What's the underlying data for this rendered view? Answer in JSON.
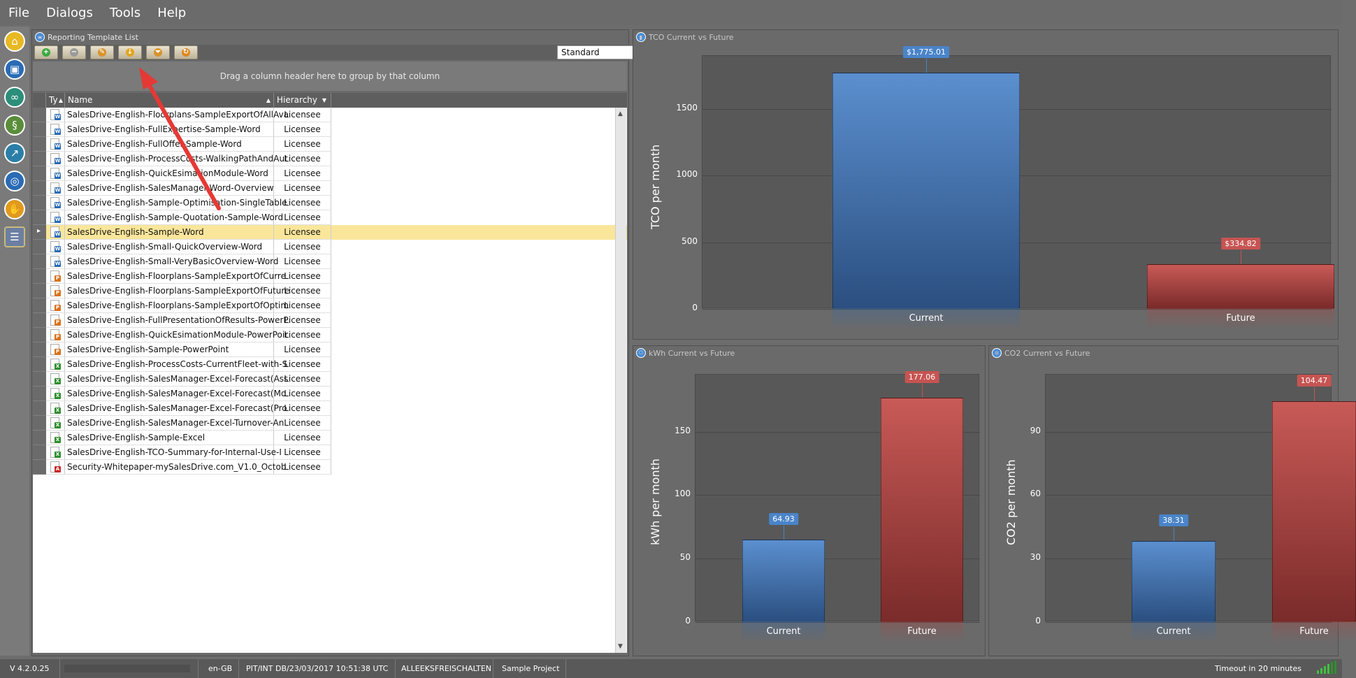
{
  "menu": [
    "File",
    "Dialogs",
    "Tools",
    "Help"
  ],
  "leftnav": [
    {
      "name": "home-icon",
      "color": "#e8b923"
    },
    {
      "name": "folder-icon",
      "color": "#2a6bb5"
    },
    {
      "name": "binoculars-icon",
      "color": "#2b8f7a"
    },
    {
      "name": "scroll-icon",
      "color": "#5a8d3a"
    },
    {
      "name": "chart-line-icon",
      "color": "#2a7fa8"
    },
    {
      "name": "target-icon",
      "color": "#2a6bb5"
    },
    {
      "name": "handshake-icon",
      "color": "#e09a1e"
    },
    {
      "name": "report-list-icon",
      "color": "#6d7fa1"
    }
  ],
  "list_panel": {
    "title": "Reporting Template List",
    "group_hint": "Drag a column header here to group by that column",
    "view_combo": "Standard",
    "toolbar": [
      {
        "name": "add-button",
        "icon": "plus",
        "color": "#3ca83c"
      },
      {
        "name": "remove-button",
        "icon": "minus",
        "color": "#9a9a9a"
      },
      {
        "name": "edit-button",
        "icon": "pencil",
        "color": "#d9932a"
      },
      {
        "name": "download-button",
        "icon": "download",
        "color": "#e3a51e"
      },
      {
        "name": "filter-button",
        "icon": "filter",
        "color": "#d9932a"
      },
      {
        "name": "refresh-button",
        "icon": "refresh",
        "color": "#e0861e"
      }
    ],
    "columns": {
      "type": "Ty",
      "name": "Name",
      "hierarchy": "Hierarchy"
    },
    "rows": [
      {
        "name": "SalesDrive-English-Floorplans-SampleExportOfAllAva",
        "hierarchy": "Licensee",
        "type": "word"
      },
      {
        "name": "SalesDrive-English-FullExpertise-Sample-Word",
        "hierarchy": "Licensee",
        "type": "word"
      },
      {
        "name": "SalesDrive-English-FullOffer-Sample-Word",
        "hierarchy": "Licensee",
        "type": "word"
      },
      {
        "name": "SalesDrive-English-ProcessCosts-WalkingPathAndAut",
        "hierarchy": "Licensee",
        "type": "word"
      },
      {
        "name": "SalesDrive-English-QuickEsimationModule-Word",
        "hierarchy": "Licensee",
        "type": "word"
      },
      {
        "name": "SalesDrive-English-SalesManager-Word-Overview",
        "hierarchy": "Licensee",
        "type": "word"
      },
      {
        "name": "SalesDrive-English-Sample-Optimisation-SingleTable",
        "hierarchy": "Licensee",
        "type": "word"
      },
      {
        "name": "SalesDrive-English-Sample-Quotation-Sample-Word",
        "hierarchy": "Licensee",
        "type": "word"
      },
      {
        "name": "SalesDrive-English-Sample-Word",
        "hierarchy": "Licensee",
        "type": "word",
        "selected": true
      },
      {
        "name": "SalesDrive-English-Small-QuickOverview-Word",
        "hierarchy": "Licensee",
        "type": "word"
      },
      {
        "name": "SalesDrive-English-Small-VeryBasicOverview-Word",
        "hierarchy": "Licensee",
        "type": "word"
      },
      {
        "name": "SalesDrive-English-Floorplans-SampleExportOfCurre",
        "hierarchy": "Licensee",
        "type": "ppt"
      },
      {
        "name": "SalesDrive-English-Floorplans-SampleExportOfFuture",
        "hierarchy": "Licensee",
        "type": "ppt"
      },
      {
        "name": "SalesDrive-English-Floorplans-SampleExportOfOptim",
        "hierarchy": "Licensee",
        "type": "ppt"
      },
      {
        "name": "SalesDrive-English-FullPresentationOfResults-PowerP",
        "hierarchy": "Licensee",
        "type": "ppt"
      },
      {
        "name": "SalesDrive-English-QuickEsimationModule-PowerPoir",
        "hierarchy": "Licensee",
        "type": "ppt"
      },
      {
        "name": "SalesDrive-English-Sample-PowerPoint",
        "hierarchy": "Licensee",
        "type": "ppt"
      },
      {
        "name": "SalesDrive-English-ProcessCosts-CurrentFleet-with-S",
        "hierarchy": "Licensee",
        "type": "excel"
      },
      {
        "name": "SalesDrive-English-SalesManager-Excel-Forecast(Ass",
        "hierarchy": "Licensee",
        "type": "excel"
      },
      {
        "name": "SalesDrive-English-SalesManager-Excel-Forecast(Mo",
        "hierarchy": "Licensee",
        "type": "excel"
      },
      {
        "name": "SalesDrive-English-SalesManager-Excel-Forecast(Pro",
        "hierarchy": "Licensee",
        "type": "excel"
      },
      {
        "name": "SalesDrive-English-SalesManager-Excel-Turnover-An",
        "hierarchy": "Licensee",
        "type": "excel"
      },
      {
        "name": "SalesDrive-English-Sample-Excel",
        "hierarchy": "Licensee",
        "type": "excel"
      },
      {
        "name": "SalesDrive-English-TCO-Summary-for-Internal-Use-I",
        "hierarchy": "Licensee",
        "type": "excel"
      },
      {
        "name": "Security-Whitepaper-mySalesDrive.com_V1.0_Octob",
        "hierarchy": "Licensee",
        "type": "pdf"
      }
    ]
  },
  "chart_data": [
    {
      "type": "bar",
      "title": "TCO Current vs Future",
      "categories": [
        "Current",
        "Future"
      ],
      "values": [
        1775.01,
        334.82
      ],
      "data_labels": [
        "$1,775.01",
        "$334.82"
      ],
      "colors": [
        "#4a84c9",
        "#c65452"
      ],
      "ylabel": "TCO per month",
      "yticks": [
        0,
        500,
        1000,
        1500
      ],
      "ylim": [
        0,
        1900
      ]
    },
    {
      "type": "bar",
      "title": "kWh Current vs Future",
      "categories": [
        "Current",
        "Future"
      ],
      "values": [
        64.93,
        177.06
      ],
      "data_labels": [
        "64.93",
        "177.06"
      ],
      "colors": [
        "#4a84c9",
        "#c65452"
      ],
      "ylabel": "kWh per month",
      "yticks": [
        0,
        50,
        100,
        150
      ],
      "ylim": [
        0,
        195
      ]
    },
    {
      "type": "bar",
      "title": "CO2 Current vs Future",
      "categories": [
        "Current",
        "Future"
      ],
      "values": [
        38.31,
        104.47
      ],
      "data_labels": [
        "38.31",
        "104.47"
      ],
      "colors": [
        "#4a84c9",
        "#c65452"
      ],
      "ylabel": "CO2 per month",
      "yticks": [
        0,
        30,
        60,
        90
      ],
      "ylim": [
        0,
        117
      ]
    }
  ],
  "status": {
    "version": "V 4.2.0.25",
    "locale": "en-GB",
    "db": "PIT/INT DB/23/03/2017 10:51:38 UTC",
    "user": "ALLEEKSFREISCHALTEN",
    "project": "Sample Project",
    "timeout": "Timeout in 20 minutes"
  }
}
